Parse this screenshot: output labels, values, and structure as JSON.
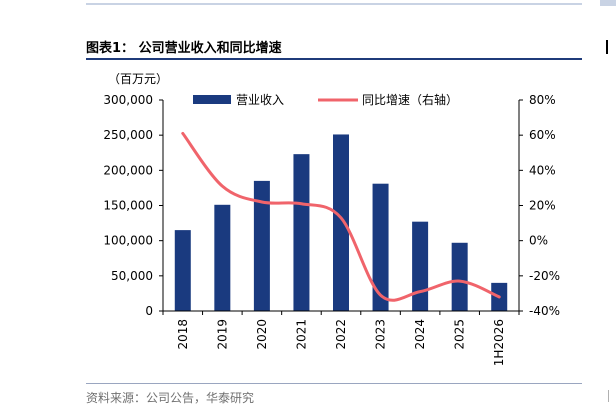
{
  "title": {
    "label": "图表1：",
    "text": "公司营业收入和同比增速"
  },
  "unit": "（百万元）",
  "source": "资料来源：公司公告，华泰研究",
  "colors": {
    "bar": "#1a3a7f",
    "line": "#f0646b",
    "rule": "#1f3b7a"
  },
  "chart_data": {
    "type": "bar",
    "categories": [
      "2018",
      "2019",
      "2020",
      "2021",
      "2022",
      "2023",
      "2024",
      "2025",
      "1H2026"
    ],
    "series": [
      {
        "name": "营业收入",
        "type": "bar",
        "axis": "left",
        "values": [
          115000,
          151000,
          185000,
          223000,
          251000,
          181000,
          127000,
          97000,
          40000
        ]
      },
      {
        "name": "同比增速（右轴）",
        "type": "line",
        "axis": "right",
        "values": [
          61,
          31,
          22,
          21,
          13,
          -31,
          -29,
          -23,
          -32
        ]
      }
    ],
    "left_axis": {
      "ticks": [
        "0",
        "50,000",
        "100,000",
        "150,000",
        "200,000",
        "250,000",
        "300,000"
      ],
      "ylim": [
        0,
        300000
      ]
    },
    "right_axis": {
      "ticks": [
        "-40%",
        "-20%",
        "0%",
        "20%",
        "40%",
        "60%",
        "80%"
      ],
      "ylim": [
        -40,
        80
      ]
    },
    "legend_position": "top"
  }
}
